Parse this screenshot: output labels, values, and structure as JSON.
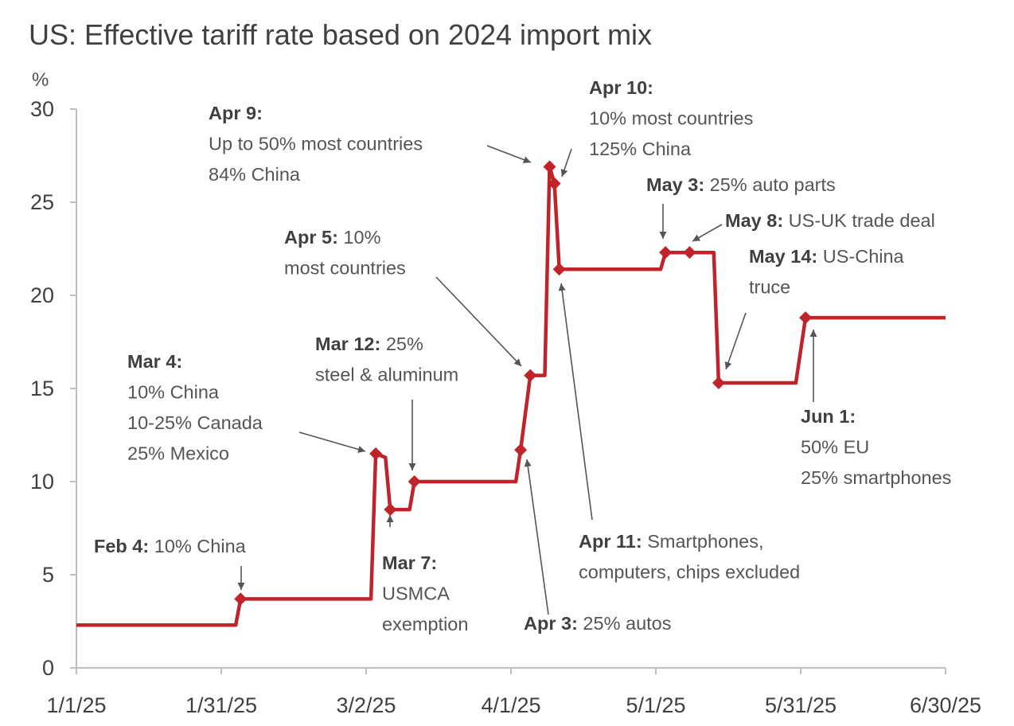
{
  "chart_data": {
    "type": "line",
    "title": "US: Effective tariff rate based on 2024 import mix",
    "ylabel": "%",
    "xlabel": "",
    "ylim": [
      0,
      30
    ],
    "xlim": [
      "2025-01-01",
      "2025-06-30"
    ],
    "yticks": [
      "0",
      "5",
      "10",
      "15",
      "20",
      "25",
      "30"
    ],
    "xticks": [
      {
        "date": "2025-01-01",
        "label": "1/1/25"
      },
      {
        "date": "2025-01-31",
        "label": "1/31/25"
      },
      {
        "date": "2025-03-02",
        "label": "3/2/25"
      },
      {
        "date": "2025-04-01",
        "label": "4/1/25"
      },
      {
        "date": "2025-05-01",
        "label": "5/1/25"
      },
      {
        "date": "2025-05-31",
        "label": "5/31/25"
      },
      {
        "date": "2025-06-30",
        "label": "6/30/25"
      }
    ],
    "grid": false,
    "step_series": [
      {
        "date": "2025-01-01",
        "value": 2.3
      },
      {
        "date": "2025-02-03",
        "value": 2.3
      },
      {
        "date": "2025-02-04",
        "value": 3.7
      },
      {
        "date": "2025-03-03",
        "value": 3.7
      },
      {
        "date": "2025-03-04",
        "value": 11.5
      },
      {
        "date": "2025-03-06",
        "value": 11.3
      },
      {
        "date": "2025-03-07",
        "value": 8.5
      },
      {
        "date": "2025-03-11",
        "value": 8.5
      },
      {
        "date": "2025-03-12",
        "value": 10.0
      },
      {
        "date": "2025-04-02",
        "value": 10.0
      },
      {
        "date": "2025-04-03",
        "value": 11.7
      },
      {
        "date": "2025-04-05",
        "value": 15.7
      },
      {
        "date": "2025-04-08",
        "value": 15.7
      },
      {
        "date": "2025-04-09",
        "value": 26.9
      },
      {
        "date": "2025-04-10",
        "value": 26.0
      },
      {
        "date": "2025-04-11",
        "value": 21.4
      },
      {
        "date": "2025-05-02",
        "value": 21.4
      },
      {
        "date": "2025-05-03",
        "value": 22.3
      },
      {
        "date": "2025-05-08",
        "value": 22.3
      },
      {
        "date": "2025-05-13",
        "value": 22.3
      },
      {
        "date": "2025-05-14",
        "value": 15.3
      },
      {
        "date": "2025-05-30",
        "value": 15.3
      },
      {
        "date": "2025-06-01",
        "value": 18.8
      },
      {
        "date": "2025-06-30",
        "value": 18.8
      }
    ],
    "events": [
      {
        "date": "2025-02-04",
        "value": 3.7,
        "label": "Feb 4:",
        "lines": [
          "Feb 4: 10% China"
        ]
      },
      {
        "date": "2025-03-04",
        "value": 11.5,
        "label": "Mar 4:",
        "lines": [
          "Mar 4:",
          "10% China",
          "10-25% Canada",
          "25% Mexico"
        ]
      },
      {
        "date": "2025-03-07",
        "value": 8.5,
        "label": "Mar 7:",
        "lines": [
          "Mar 7:",
          "USMCA",
          "exemption"
        ]
      },
      {
        "date": "2025-03-12",
        "value": 10.0,
        "label": "Mar 12:",
        "lines": [
          "Mar 12: 25%",
          "steel & aluminum"
        ]
      },
      {
        "date": "2025-04-03",
        "value": 11.7,
        "label": "Apr 3:",
        "lines": [
          "Apr 3: 25% autos"
        ]
      },
      {
        "date": "2025-04-05",
        "value": 15.7,
        "label": "Apr 5:",
        "lines": [
          "Apr 5: 10%",
          "most countries"
        ]
      },
      {
        "date": "2025-04-09",
        "value": 26.9,
        "label": "Apr 9:",
        "lines": [
          "Apr 9:",
          "Up to 50% most countries",
          "84% China"
        ]
      },
      {
        "date": "2025-04-10",
        "value": 26.0,
        "label": "Apr 10:",
        "lines": [
          "Apr 10:",
          "10% most countries",
          "125% China"
        ]
      },
      {
        "date": "2025-04-11",
        "value": 21.4,
        "label": "Apr 11:",
        "lines": [
          "Apr 11: Smartphones,",
          "computers, chips excluded"
        ]
      },
      {
        "date": "2025-05-03",
        "value": 22.3,
        "label": "May 3:",
        "lines": [
          "May 3: 25% auto parts"
        ]
      },
      {
        "date": "2025-05-08",
        "value": 22.3,
        "label": "May 8:",
        "lines": [
          "May 8: US-UK trade deal"
        ]
      },
      {
        "date": "2025-05-14",
        "value": 15.3,
        "label": "May 14:",
        "lines": [
          "May 14: US-China",
          "truce"
        ]
      },
      {
        "date": "2025-06-01",
        "value": 18.8,
        "label": "Jun 1:",
        "lines": [
          "Jun 1:",
          "50% EU",
          "25% smartphones"
        ]
      }
    ],
    "series_color": "#c0232a"
  }
}
